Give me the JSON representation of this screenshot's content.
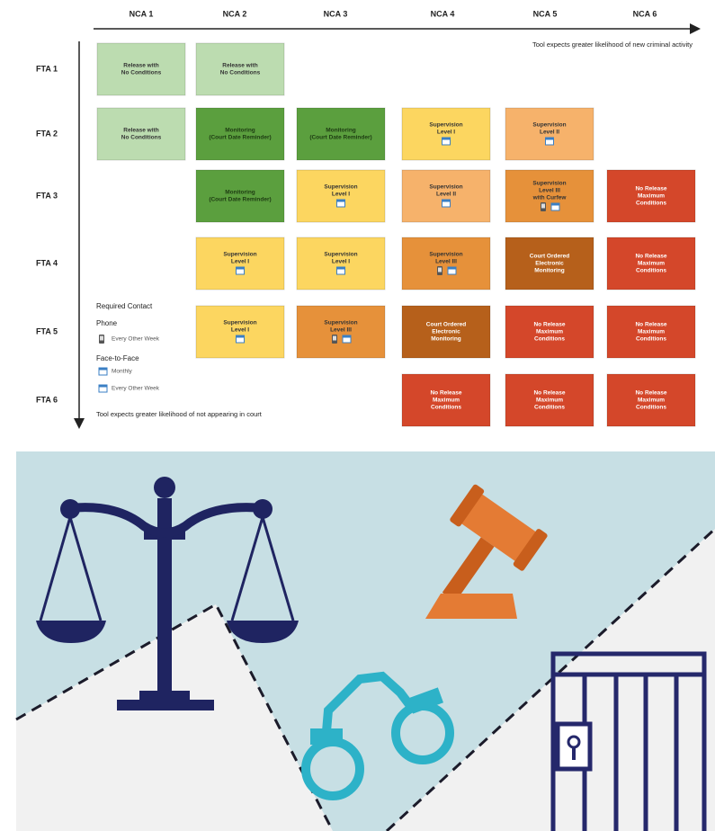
{
  "header": {
    "columns": [
      "NCA 1",
      "NCA 2",
      "NCA 3",
      "NCA 4",
      "NCA 5",
      "NCA 6"
    ],
    "x_axis_note": "Tool expects greater likelihood of new criminal activity"
  },
  "rows": [
    "FTA 1",
    "FTA 2",
    "FTA 3",
    "FTA 4",
    "FTA 5",
    "FTA 6"
  ],
  "y_axis_note": "Tool expects greater likelihood of not appearing in court",
  "cells": [
    {
      "row": 0,
      "col": 0,
      "lines": [
        "Release with",
        "No Conditions"
      ],
      "color": "#bcdcb0"
    },
    {
      "row": 0,
      "col": 1,
      "lines": [
        "Release with",
        "No Conditions"
      ],
      "color": "#bcdcb0"
    },
    {
      "row": 1,
      "col": 0,
      "lines": [
        "Release with",
        "No Conditions"
      ],
      "color": "#bcdcb0"
    },
    {
      "row": 1,
      "col": 1,
      "lines": [
        "Monitoring",
        "(Court Date Reminder)"
      ],
      "color": "#5b9f3e"
    },
    {
      "row": 1,
      "col": 2,
      "lines": [
        "Monitoring",
        "(Court Date Reminder)"
      ],
      "color": "#5b9f3e"
    },
    {
      "row": 1,
      "col": 3,
      "lines": [
        "Supervision",
        "Level I"
      ],
      "color": "#fcd660"
    },
    {
      "row": 1,
      "col": 4,
      "lines": [
        "Supervision",
        "Level II"
      ],
      "color": "#f6b26b"
    },
    {
      "row": 2,
      "col": 1,
      "lines": [
        "Monitoring",
        "(Court Date Reminder)"
      ],
      "color": "#5b9f3e"
    },
    {
      "row": 2,
      "col": 2,
      "lines": [
        "Supervision",
        "Level I"
      ],
      "color": "#fcd660"
    },
    {
      "row": 2,
      "col": 3,
      "lines": [
        "Supervision",
        "Level II"
      ],
      "color": "#f6b26b"
    },
    {
      "row": 2,
      "col": 4,
      "lines": [
        "Supervision",
        "Level III",
        "with Curfew"
      ],
      "color": "#e6913a"
    },
    {
      "row": 2,
      "col": 5,
      "lines": [
        "No Release",
        "Maximum",
        "Conditions"
      ],
      "color": "#d4472a"
    },
    {
      "row": 3,
      "col": 1,
      "lines": [
        "Supervision",
        "Level I"
      ],
      "color": "#fcd660"
    },
    {
      "row": 3,
      "col": 2,
      "lines": [
        "Supervision",
        "Level I"
      ],
      "color": "#fcd660"
    },
    {
      "row": 3,
      "col": 3,
      "lines": [
        "Supervision",
        "Level III"
      ],
      "color": "#e6913a"
    },
    {
      "row": 3,
      "col": 4,
      "lines": [
        "Court Ordered",
        "Electronic",
        "Monitoring"
      ],
      "color": "#b6601b"
    },
    {
      "row": 3,
      "col": 5,
      "lines": [
        "No Release",
        "Maximum",
        "Conditions"
      ],
      "color": "#d4472a"
    },
    {
      "row": 4,
      "col": 1,
      "lines": [
        "Supervision",
        "Level I"
      ],
      "color": "#fcd660"
    },
    {
      "row": 4,
      "col": 2,
      "lines": [
        "Supervision",
        "Level III"
      ],
      "color": "#e6913a"
    },
    {
      "row": 4,
      "col": 3,
      "lines": [
        "Court Ordered",
        "Electronic",
        "Monitoring"
      ],
      "color": "#b6601b"
    },
    {
      "row": 4,
      "col": 4,
      "lines": [
        "No Release",
        "Maximum",
        "Conditions"
      ],
      "color": "#d4472a"
    },
    {
      "row": 4,
      "col": 5,
      "lines": [
        "No Release",
        "Maximum",
        "Conditions"
      ],
      "color": "#d4472a"
    },
    {
      "row": 5,
      "col": 3,
      "lines": [
        "No Release",
        "Maximum",
        "Conditions"
      ],
      "color": "#d4472a"
    },
    {
      "row": 5,
      "col": 4,
      "lines": [
        "No Release",
        "Maximum",
        "Conditions"
      ],
      "color": "#d4472a"
    },
    {
      "row": 5,
      "col": 5,
      "lines": [
        "No Release",
        "Maximum",
        "Conditions"
      ],
      "color": "#d4472a"
    }
  ],
  "legend": {
    "title": "Required Contact",
    "phone": {
      "label": "Phone",
      "items": [
        "Every Other Week"
      ]
    },
    "face_to_face": {
      "label": "Face-to-Face",
      "items": [
        "Monthly",
        "Every Other Week"
      ]
    }
  }
}
